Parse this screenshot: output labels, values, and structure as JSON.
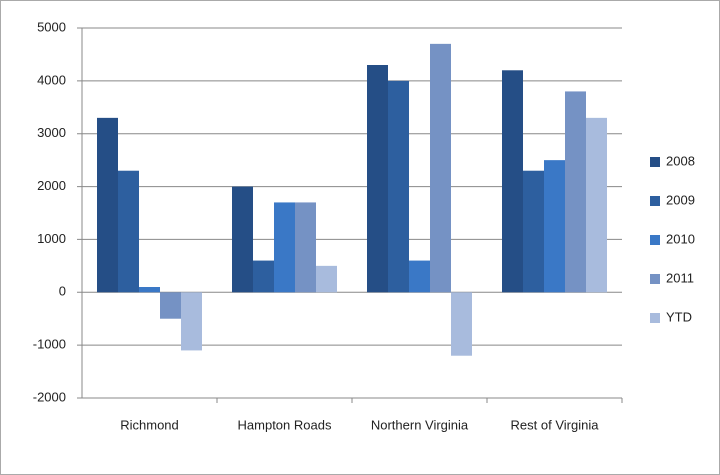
{
  "chart_data": {
    "type": "bar",
    "categories": [
      "Richmond",
      "Hampton Roads",
      "Northern Virginia",
      "Rest of Virginia"
    ],
    "series": [
      {
        "name": "2008",
        "color": "#254e86",
        "values": [
          3300,
          2000,
          4300,
          4200
        ]
      },
      {
        "name": "2009",
        "color": "#2d5f9f",
        "values": [
          2300,
          600,
          4000,
          2300
        ]
      },
      {
        "name": "2010",
        "color": "#3a78c6",
        "values": [
          100,
          1700,
          600,
          2500
        ]
      },
      {
        "name": "2011",
        "color": "#7592c4",
        "values": [
          -500,
          1700,
          4700,
          3800
        ]
      },
      {
        "name": "YTD",
        "color": "#a8bbdd",
        "values": [
          -1100,
          500,
          -1200,
          3300
        ]
      }
    ],
    "ylim": [
      -2000,
      5000
    ],
    "yticks": [
      -2000,
      -1000,
      0,
      1000,
      2000,
      3000,
      4000,
      5000
    ],
    "grid": true,
    "legend": "right"
  }
}
